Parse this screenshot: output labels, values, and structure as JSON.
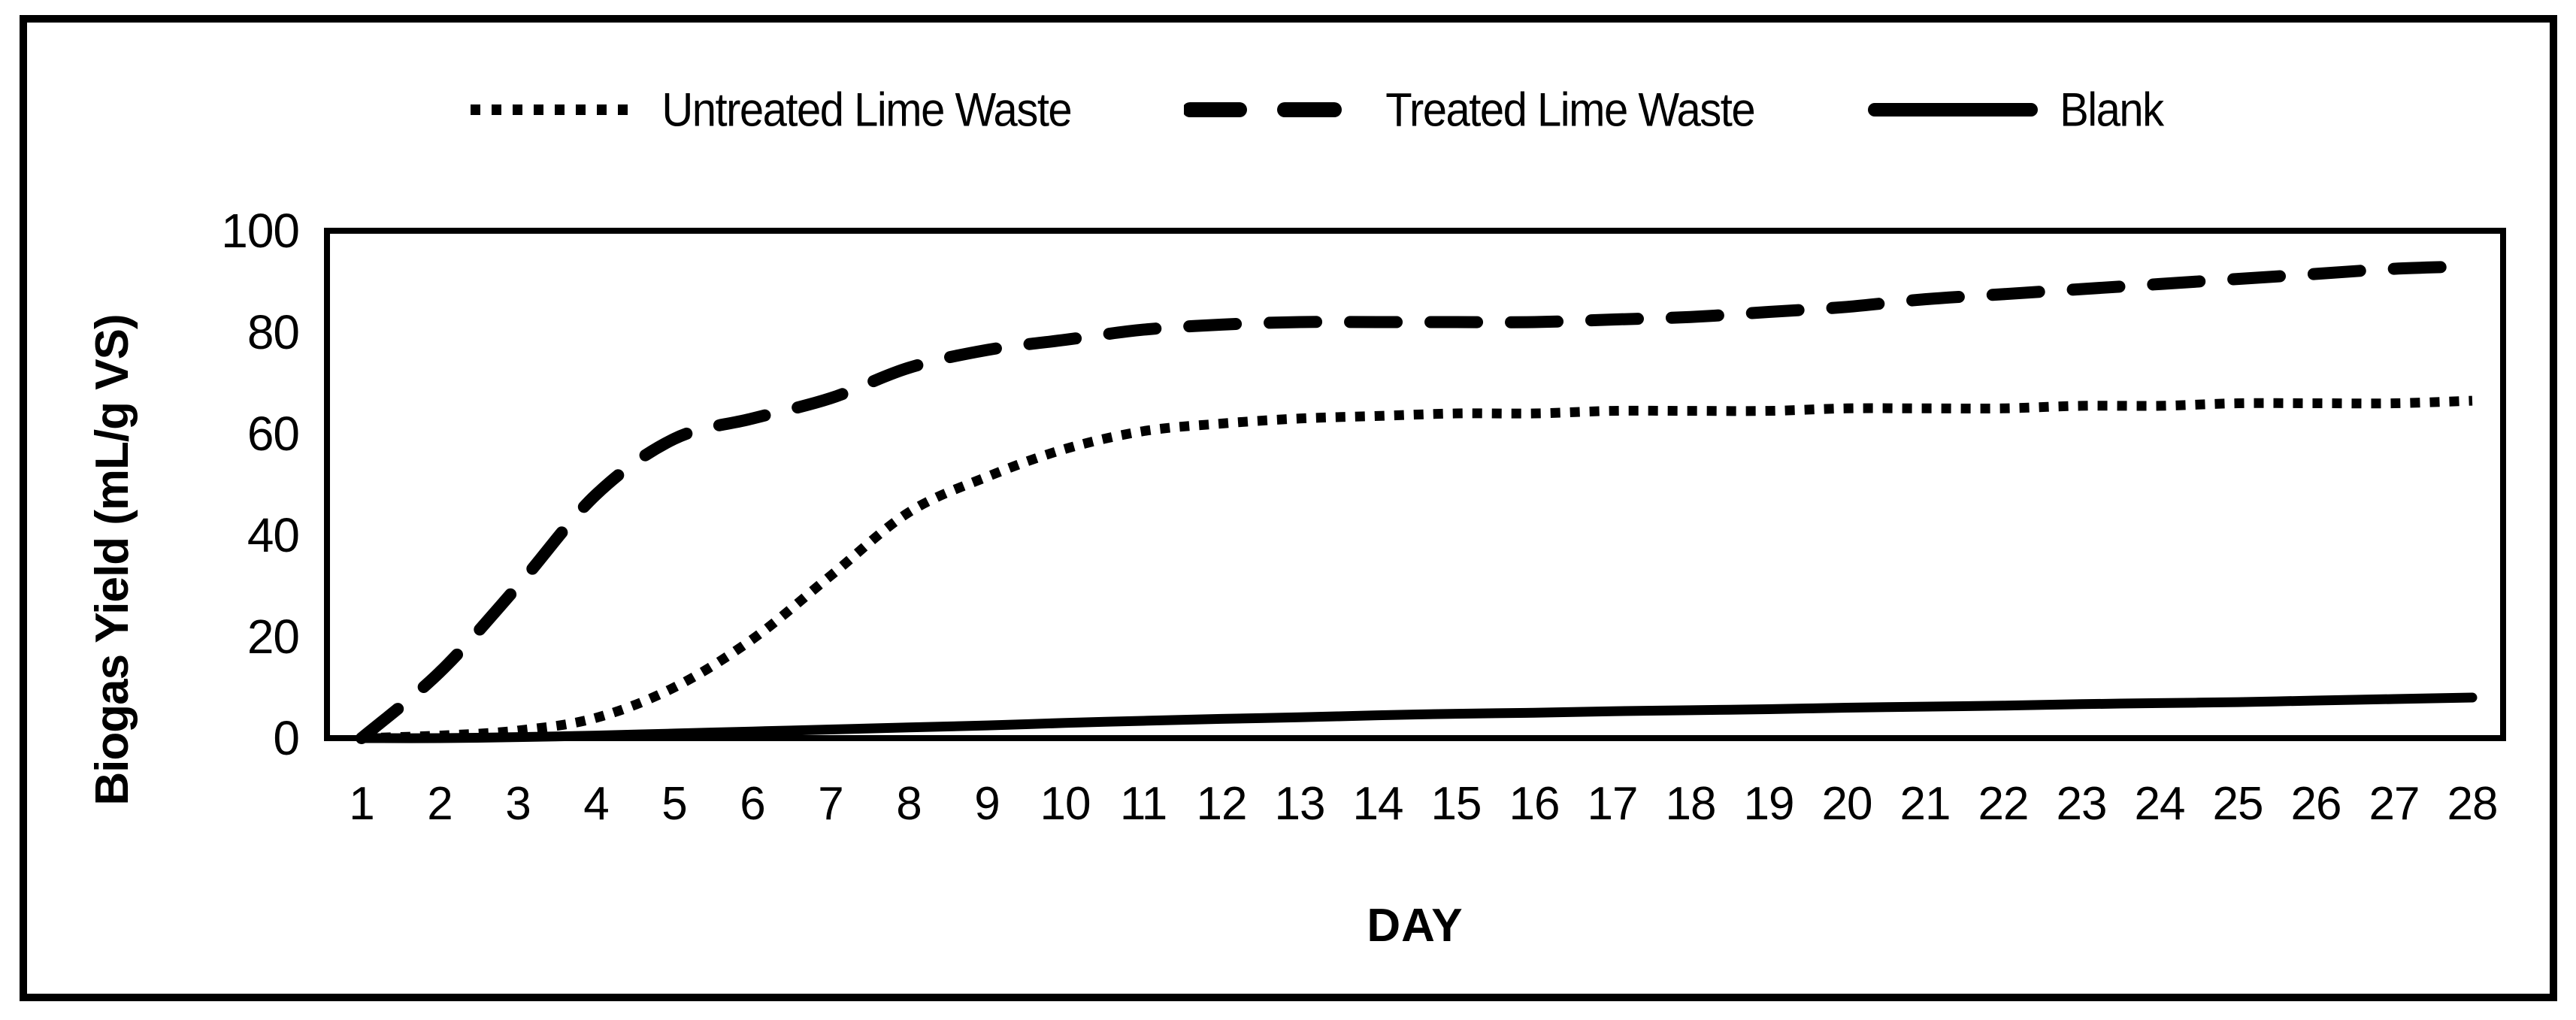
{
  "figure": {
    "background_color": "#ffffff",
    "border_color": "#000000",
    "line_color": "#000000"
  },
  "chart_data": {
    "type": "line",
    "title": "",
    "xlabel": "DAY",
    "ylabel": "Biogas Yield (mL/g VS)",
    "x": [
      1,
      2,
      3,
      4,
      5,
      6,
      7,
      8,
      9,
      10,
      11,
      12,
      13,
      14,
      15,
      16,
      17,
      18,
      19,
      20,
      21,
      22,
      23,
      24,
      25,
      26,
      27,
      28
    ],
    "xlim": [
      1,
      28
    ],
    "ylim": [
      0,
      100
    ],
    "y_ticks": [
      0,
      20,
      40,
      60,
      80,
      100
    ],
    "grid": false,
    "legend_position": "top-center",
    "series": [
      {
        "name": "Untreated Lime Waste",
        "style": "dotted",
        "color": "#000000",
        "values": [
          0,
          0.5,
          1.5,
          4,
          10,
          19.5,
          32,
          44.5,
          51.5,
          57,
          60.5,
          62,
          63,
          63.5,
          64,
          64,
          64.5,
          64.5,
          64.5,
          65,
          65,
          65,
          65.5,
          65.5,
          66,
          66,
          66,
          66.5
        ]
      },
      {
        "name": "Treated Lime Waste",
        "style": "dashed",
        "color": "#000000",
        "values": [
          0,
          13,
          30,
          48,
          59,
          63,
          67,
          73,
          76.5,
          78.5,
          80.5,
          81.5,
          82,
          82,
          82,
          82,
          82.5,
          83,
          84,
          85,
          86.5,
          87.5,
          88.5,
          89.5,
          90.5,
          91.5,
          92.5,
          93
        ]
      },
      {
        "name": "Blank",
        "style": "solid",
        "color": "#000000",
        "values": [
          0,
          0,
          0.2,
          0.5,
          0.9,
          1.3,
          1.7,
          2.1,
          2.5,
          3,
          3.4,
          3.8,
          4.1,
          4.5,
          4.8,
          5,
          5.3,
          5.5,
          5.7,
          6,
          6.2,
          6.4,
          6.7,
          6.9,
          7.1,
          7.4,
          7.7,
          8
        ]
      }
    ]
  }
}
